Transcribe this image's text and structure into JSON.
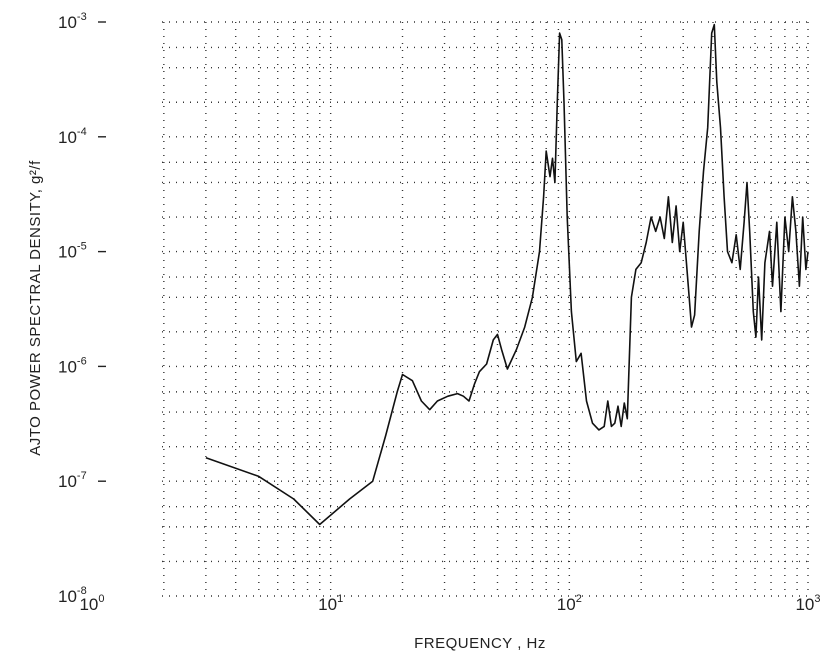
{
  "chart_data": {
    "type": "line",
    "title": "",
    "xlabel": "FREQUENCY , Hz",
    "ylabel": "AJTO POWER SPECTRAL DENSITY, g²/f",
    "xscale": "log",
    "yscale": "log",
    "xlim": [
      1,
      1000
    ],
    "ylim": [
      1e-08,
      0.001
    ],
    "grid": true,
    "legend": "none",
    "x_ticks": [
      {
        "value": 1,
        "base": "10",
        "exp": "0"
      },
      {
        "value": 10,
        "base": "10",
        "exp": "1"
      },
      {
        "value": 100,
        "base": "10",
        "exp": "2"
      },
      {
        "value": 1000,
        "base": "10",
        "exp": "3"
      }
    ],
    "y_ticks": [
      {
        "value": 1e-08,
        "base": "10",
        "exp": "-8"
      },
      {
        "value": 1e-07,
        "base": "10",
        "exp": "-7"
      },
      {
        "value": 1e-06,
        "base": "10",
        "exp": "-6"
      },
      {
        "value": 1e-05,
        "base": "10",
        "exp": "-5"
      },
      {
        "value": 0.0001,
        "base": "10",
        "exp": "-4"
      },
      {
        "value": 0.001,
        "base": "10",
        "exp": "-3"
      }
    ],
    "series": [
      {
        "color": "#111111",
        "points": [
          [
            3,
            1.6e-07
          ],
          [
            5,
            1.1e-07
          ],
          [
            7,
            7e-08
          ],
          [
            9,
            4.2e-08
          ],
          [
            12,
            7e-08
          ],
          [
            15,
            1e-07
          ],
          [
            17,
            2.5e-07
          ],
          [
            19,
            6e-07
          ],
          [
            20,
            8.5e-07
          ],
          [
            22,
            7.5e-07
          ],
          [
            24,
            5e-07
          ],
          [
            26,
            4.2e-07
          ],
          [
            28,
            5e-07
          ],
          [
            31,
            5.5e-07
          ],
          [
            34,
            5.8e-07
          ],
          [
            36,
            5.5e-07
          ],
          [
            38,
            5e-07
          ],
          [
            40,
            7e-07
          ],
          [
            42,
            9e-07
          ],
          [
            45,
            1.05e-06
          ],
          [
            48,
            1.7e-06
          ],
          [
            50,
            1.9e-06
          ],
          [
            52,
            1.4e-06
          ],
          [
            55,
            9.5e-07
          ],
          [
            60,
            1.4e-06
          ],
          [
            65,
            2.2e-06
          ],
          [
            70,
            4e-06
          ],
          [
            75,
            1e-05
          ],
          [
            78,
            3e-05
          ],
          [
            80,
            7.5e-05
          ],
          [
            83,
            4.5e-05
          ],
          [
            85,
            6.5e-05
          ],
          [
            87,
            4e-05
          ],
          [
            89,
            0.0002
          ],
          [
            91,
            0.0008
          ],
          [
            93,
            0.0007
          ],
          [
            95,
            0.0002
          ],
          [
            98,
            2e-05
          ],
          [
            102,
            3e-06
          ],
          [
            107,
            1.1e-06
          ],
          [
            112,
            1.3e-06
          ],
          [
            118,
            5e-07
          ],
          [
            125,
            3.2e-07
          ],
          [
            133,
            2.8e-07
          ],
          [
            140,
            3e-07
          ],
          [
            145,
            5e-07
          ],
          [
            150,
            3e-07
          ],
          [
            155,
            3.2e-07
          ],
          [
            160,
            4.5e-07
          ],
          [
            165,
            3e-07
          ],
          [
            170,
            4.8e-07
          ],
          [
            175,
            3.5e-07
          ],
          [
            182,
            4e-06
          ],
          [
            190,
            7e-06
          ],
          [
            200,
            8e-06
          ],
          [
            210,
            1.2e-05
          ],
          [
            220,
            2e-05
          ],
          [
            230,
            1.5e-05
          ],
          [
            240,
            2e-05
          ],
          [
            250,
            1.3e-05
          ],
          [
            260,
            3e-05
          ],
          [
            270,
            1.2e-05
          ],
          [
            280,
            2.5e-05
          ],
          [
            290,
            1e-05
          ],
          [
            300,
            1.8e-05
          ],
          [
            315,
            5e-06
          ],
          [
            325,
            2.2e-06
          ],
          [
            335,
            2.8e-06
          ],
          [
            350,
            1.5e-05
          ],
          [
            365,
            5e-05
          ],
          [
            380,
            0.00012
          ],
          [
            395,
            0.0008
          ],
          [
            405,
            0.00095
          ],
          [
            415,
            0.0003
          ],
          [
            430,
            0.00012
          ],
          [
            445,
            3e-05
          ],
          [
            460,
            1e-05
          ],
          [
            480,
            8e-06
          ],
          [
            500,
            1.4e-05
          ],
          [
            520,
            7e-06
          ],
          [
            540,
            1.8e-05
          ],
          [
            555,
            4e-05
          ],
          [
            570,
            1.5e-05
          ],
          [
            590,
            3e-06
          ],
          [
            605,
            1.8e-06
          ],
          [
            620,
            6e-06
          ],
          [
            640,
            1.7e-06
          ],
          [
            660,
            8e-06
          ],
          [
            690,
            1.5e-05
          ],
          [
            710,
            5e-06
          ],
          [
            740,
            1.8e-05
          ],
          [
            770,
            3e-06
          ],
          [
            800,
            2e-05
          ],
          [
            830,
            1e-05
          ],
          [
            860,
            3e-05
          ],
          [
            890,
            1.5e-05
          ],
          [
            920,
            5e-06
          ],
          [
            950,
            2e-05
          ],
          [
            980,
            7e-06
          ],
          [
            1000,
            1e-05
          ]
        ]
      }
    ]
  }
}
